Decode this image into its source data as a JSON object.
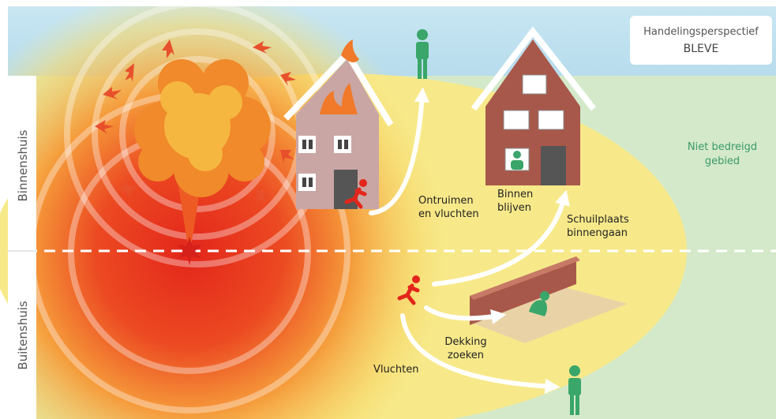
{
  "header": {
    "title": "Handelingsperspectief",
    "subtitle": "BLEVE"
  },
  "zones": {
    "safe_area": [
      "Niet bedreigd",
      "gebied"
    ],
    "indoor": "Binnenshuis",
    "outdoor": "Buitenshuis"
  },
  "actions": {
    "evacuate": [
      "Ontruimen",
      "en vluchten"
    ],
    "stay_inside": [
      "Binnen",
      "blijven"
    ],
    "shelter": [
      "Schuilplaats",
      "binnengaan"
    ],
    "take_cover": [
      "Dekking",
      "zoeken"
    ],
    "flee": [
      "Vluchten"
    ]
  }
}
